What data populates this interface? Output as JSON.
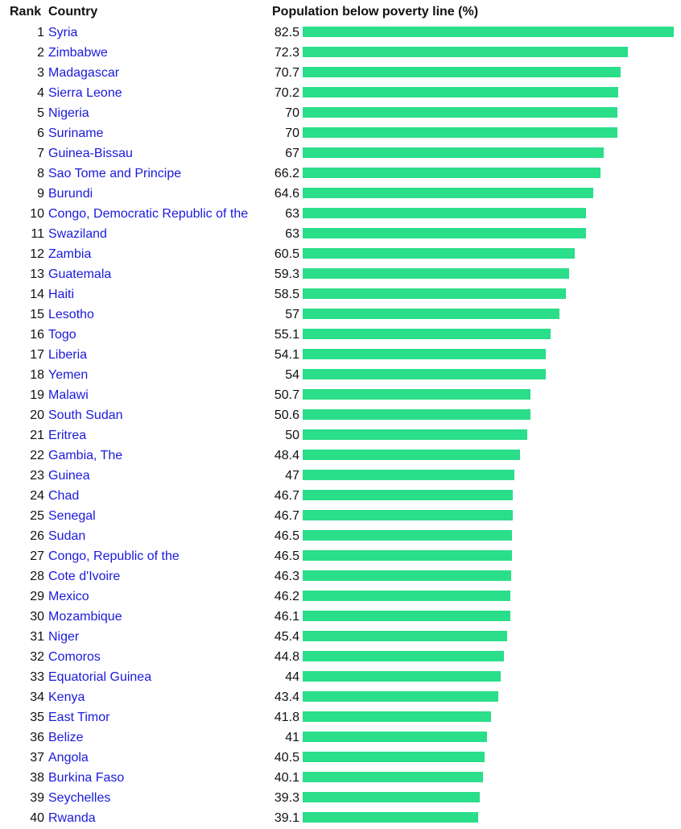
{
  "header": {
    "rank": "Rank",
    "country": "Country",
    "value": "Population below poverty line (%)"
  },
  "colors": {
    "bar": "#2ade8a",
    "link": "#1a1adb",
    "text": "#111111"
  },
  "chart_data": {
    "type": "bar",
    "orientation": "horizontal",
    "title": "Population below poverty line (%)",
    "xlabel": "Population below poverty line (%)",
    "ylabel": "Country",
    "xlim": [
      0,
      82.5
    ],
    "grid": false,
    "legend": null,
    "categories": [
      "Syria",
      "Zimbabwe",
      "Madagascar",
      "Sierra Leone",
      "Nigeria",
      "Suriname",
      "Guinea-Bissau",
      "Sao Tome and Principe",
      "Burundi",
      "Congo, Democratic Republic of the",
      "Swaziland",
      "Zambia",
      "Guatemala",
      "Haiti",
      "Lesotho",
      "Togo",
      "Liberia",
      "Yemen",
      "Malawi",
      "South Sudan",
      "Eritrea",
      "Gambia, The",
      "Guinea",
      "Chad",
      "Senegal",
      "Sudan",
      "Congo, Republic of the",
      "Cote d'Ivoire",
      "Mexico",
      "Mozambique",
      "Niger",
      "Comoros",
      "Equatorial Guinea",
      "Kenya",
      "East Timor",
      "Belize",
      "Angola",
      "Burkina Faso",
      "Seychelles",
      "Rwanda"
    ],
    "values": [
      82.5,
      72.3,
      70.7,
      70.2,
      70,
      70,
      67,
      66.2,
      64.6,
      63,
      63,
      60.5,
      59.3,
      58.5,
      57,
      55.1,
      54.1,
      54,
      50.7,
      50.6,
      50,
      48.4,
      47,
      46.7,
      46.7,
      46.5,
      46.5,
      46.3,
      46.2,
      46.1,
      45.4,
      44.8,
      44,
      43.4,
      41.8,
      41,
      40.5,
      40.1,
      39.3,
      39.1
    ]
  },
  "rows": [
    {
      "rank": "1",
      "country": "Syria",
      "value": "82.5"
    },
    {
      "rank": "2",
      "country": "Zimbabwe",
      "value": "72.3"
    },
    {
      "rank": "3",
      "country": "Madagascar",
      "value": "70.7"
    },
    {
      "rank": "4",
      "country": "Sierra Leone",
      "value": "70.2"
    },
    {
      "rank": "5",
      "country": "Nigeria",
      "value": "70"
    },
    {
      "rank": "6",
      "country": "Suriname",
      "value": "70"
    },
    {
      "rank": "7",
      "country": "Guinea-Bissau",
      "value": "67"
    },
    {
      "rank": "8",
      "country": "Sao Tome and Principe",
      "value": "66.2"
    },
    {
      "rank": "9",
      "country": "Burundi",
      "value": "64.6"
    },
    {
      "rank": "10",
      "country": "Congo, Democratic Republic of the",
      "value": "63"
    },
    {
      "rank": "11",
      "country": "Swaziland",
      "value": "63"
    },
    {
      "rank": "12",
      "country": "Zambia",
      "value": "60.5"
    },
    {
      "rank": "13",
      "country": "Guatemala",
      "value": "59.3"
    },
    {
      "rank": "14",
      "country": "Haiti",
      "value": "58.5"
    },
    {
      "rank": "15",
      "country": "Lesotho",
      "value": "57"
    },
    {
      "rank": "16",
      "country": "Togo",
      "value": "55.1"
    },
    {
      "rank": "17",
      "country": "Liberia",
      "value": "54.1"
    },
    {
      "rank": "18",
      "country": "Yemen",
      "value": "54"
    },
    {
      "rank": "19",
      "country": "Malawi",
      "value": "50.7"
    },
    {
      "rank": "20",
      "country": "South Sudan",
      "value": "50.6"
    },
    {
      "rank": "21",
      "country": "Eritrea",
      "value": "50"
    },
    {
      "rank": "22",
      "country": "Gambia, The",
      "value": "48.4"
    },
    {
      "rank": "23",
      "country": "Guinea",
      "value": "47"
    },
    {
      "rank": "24",
      "country": "Chad",
      "value": "46.7"
    },
    {
      "rank": "25",
      "country": "Senegal",
      "value": "46.7"
    },
    {
      "rank": "26",
      "country": "Sudan",
      "value": "46.5"
    },
    {
      "rank": "27",
      "country": "Congo, Republic of the",
      "value": "46.5"
    },
    {
      "rank": "28",
      "country": "Cote d'Ivoire",
      "value": "46.3"
    },
    {
      "rank": "29",
      "country": "Mexico",
      "value": "46.2"
    },
    {
      "rank": "30",
      "country": "Mozambique",
      "value": "46.1"
    },
    {
      "rank": "31",
      "country": "Niger",
      "value": "45.4"
    },
    {
      "rank": "32",
      "country": "Comoros",
      "value": "44.8"
    },
    {
      "rank": "33",
      "country": "Equatorial Guinea",
      "value": "44"
    },
    {
      "rank": "34",
      "country": "Kenya",
      "value": "43.4"
    },
    {
      "rank": "35",
      "country": "East Timor",
      "value": "41.8"
    },
    {
      "rank": "36",
      "country": "Belize",
      "value": "41"
    },
    {
      "rank": "37",
      "country": "Angola",
      "value": "40.5"
    },
    {
      "rank": "38",
      "country": "Burkina Faso",
      "value": "40.1"
    },
    {
      "rank": "39",
      "country": "Seychelles",
      "value": "39.3"
    },
    {
      "rank": "40",
      "country": "Rwanda",
      "value": "39.1"
    }
  ]
}
